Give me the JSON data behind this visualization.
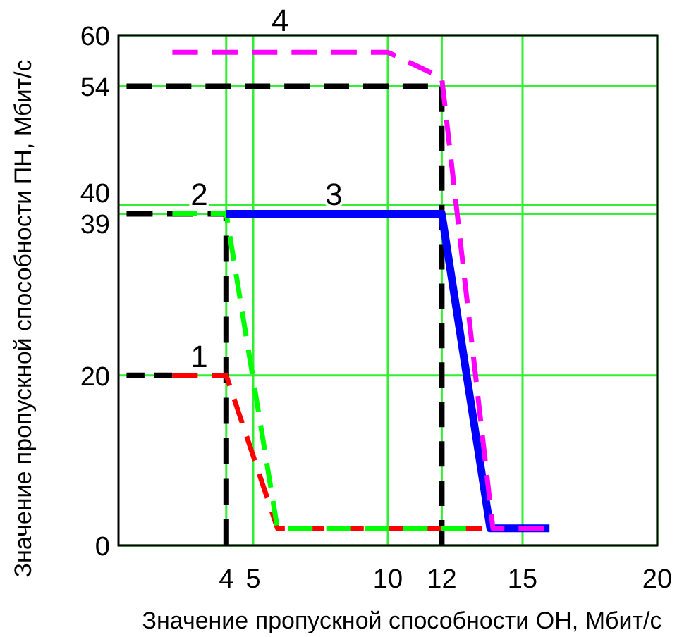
{
  "chart_data": {
    "type": "line",
    "xlabel": "Значение пропускной способности ОН, Мбит/с",
    "ylabel": "Значение пропускной способности ПН, Мбит/с",
    "xlim": [
      0,
      20
    ],
    "xticks": [
      4,
      5,
      10,
      12,
      15,
      20
    ],
    "ylim": [
      0,
      60
    ],
    "yticks": [
      0,
      20,
      39,
      40,
      54,
      60
    ],
    "grid": true,
    "marker": "none",
    "series": [
      {
        "color": "#000000",
        "line_style": "dashed",
        "x": [
          0.3,
          12,
          12
        ],
        "values": [
          54,
          54,
          0
        ]
      },
      {
        "color": "#000000",
        "line_style": "dashed",
        "x": [
          0.3,
          4,
          4
        ],
        "values": [
          39,
          39,
          0
        ]
      },
      {
        "color": "#000000",
        "line_style": "dashed",
        "x": [
          0.3,
          2
        ],
        "values": [
          20,
          20
        ]
      },
      {
        "name": "1",
        "color": "#ff0000",
        "line_style": "dashed",
        "x": [
          2,
          4,
          5.9,
          13.5
        ],
        "values": [
          20,
          20,
          2,
          2
        ]
      },
      {
        "name": "2",
        "color": "#00ff00",
        "line_style": "dashed",
        "x": [
          2,
          4,
          5.9,
          12.9
        ],
        "values": [
          39,
          39,
          2,
          2
        ]
      },
      {
        "name": "3",
        "color": "#0000ff",
        "line_style": "solid",
        "x": [
          4,
          12,
          13.8,
          16
        ],
        "values": [
          39,
          39,
          2,
          2
        ]
      },
      {
        "name": "4",
        "color": "#ff00ff",
        "line_style": "dashed",
        "x": [
          2,
          10,
          12,
          13.9,
          15.8
        ],
        "values": [
          58,
          58,
          55,
          2,
          2
        ]
      }
    ]
  }
}
